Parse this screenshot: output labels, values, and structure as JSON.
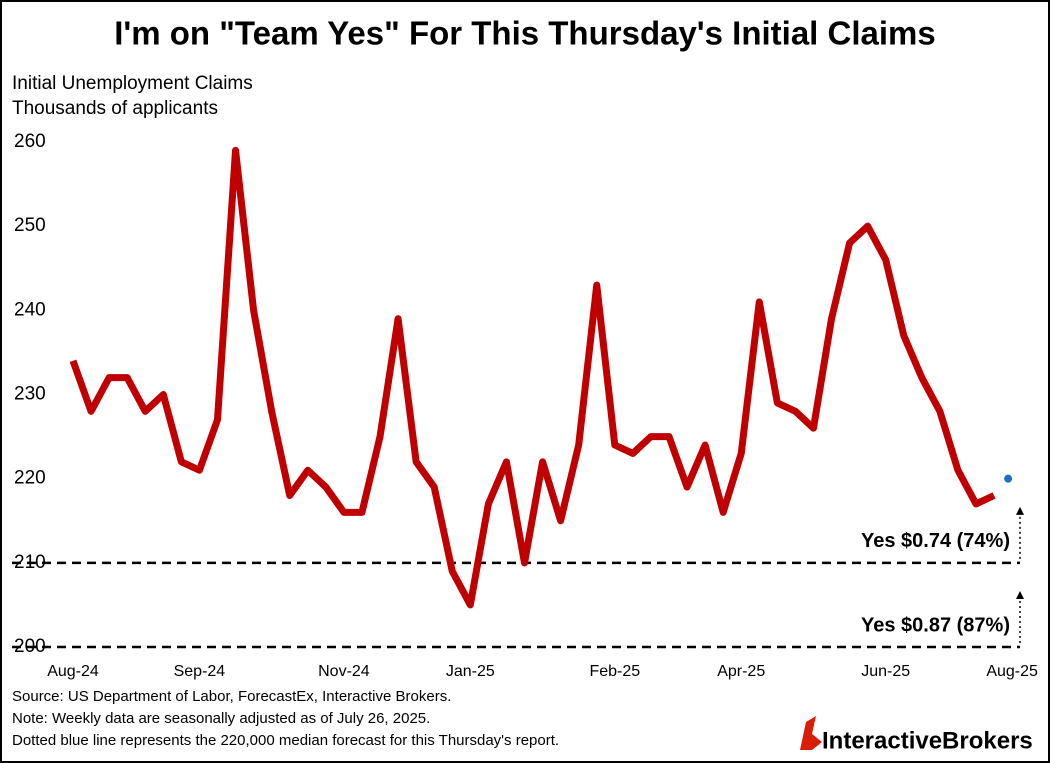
{
  "chart_data": {
    "type": "line",
    "title": "I'm on \"Team Yes\" For This Thursday's Initial Claims",
    "y_label_lines": [
      "Initial Unemployment Claims",
      "Thousands of applicants"
    ],
    "categories": [
      "Aug-24",
      null,
      null,
      null,
      null,
      null,
      null,
      "Sep-24",
      null,
      null,
      null,
      null,
      null,
      null,
      null,
      "Nov-24",
      null,
      null,
      null,
      null,
      null,
      null,
      "Jan-25",
      null,
      null,
      null,
      null,
      null,
      null,
      null,
      "Feb-25",
      null,
      null,
      null,
      null,
      null,
      null,
      "Apr-25",
      null,
      null,
      null,
      null,
      null,
      null,
      null,
      "Jun-25",
      null,
      null,
      null,
      null,
      null,
      null,
      "Aug-25"
    ],
    "series": [
      {
        "color": "#c00000",
        "values": [
          234,
          228,
          232,
          232,
          228,
          230,
          222,
          221,
          227,
          259,
          240,
          228,
          218,
          221,
          219,
          216,
          216,
          225,
          239,
          222,
          219,
          209,
          205,
          217,
          222,
          210,
          222,
          215,
          224,
          243,
          224,
          223,
          225,
          225,
          219,
          224,
          216,
          223,
          241,
          229,
          228,
          226,
          239,
          248,
          250,
          246,
          237,
          232,
          228,
          221,
          217,
          218,
          null
        ]
      },
      {
        "color": "#1f6fc0",
        "values": [
          null,
          null,
          null,
          null,
          null,
          null,
          null,
          null,
          null,
          null,
          null,
          null,
          null,
          null,
          null,
          null,
          null,
          null,
          null,
          null,
          null,
          null,
          null,
          null,
          null,
          null,
          null,
          null,
          null,
          null,
          null,
          null,
          null,
          null,
          null,
          null,
          null,
          null,
          null,
          null,
          null,
          null,
          null,
          null,
          null,
          null,
          null,
          null,
          null,
          null,
          null,
          null,
          220
        ]
      }
    ],
    "ylim": [
      200,
      260
    ],
    "yticks": [
      200,
      210,
      220,
      230,
      240,
      250,
      260
    ],
    "grid": false,
    "reference_lines": [
      {
        "value": 210,
        "label": "Yes $0.74 (74%)",
        "color": "#1fa34a"
      },
      {
        "value": 200,
        "label": "Yes $0.87 (87%)",
        "color": "#1fa34a"
      }
    ],
    "notes": [
      "Source: US Department of Labor, ForecastEx, Interactive Brokers.",
      "Note: Weekly data are seasonally adjusted as of July 26, 2025.",
      "Dotted blue line represents the 220,000 median forecast for this Thursday's report."
    ],
    "logo": "InteractiveBrokers"
  }
}
